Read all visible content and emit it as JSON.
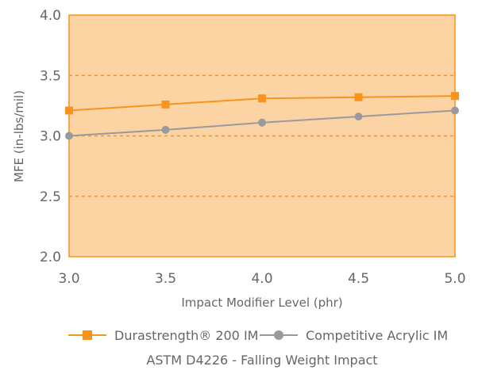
{
  "colors": {
    "plot_background": "#fcd3a2",
    "plot_border": "#f7941d",
    "gridline": "#f7941d",
    "series_orange": "#f7941d",
    "series_gray": "#9a9a9e"
  },
  "chart_data": {
    "type": "line",
    "title": "",
    "subtitle": "ASTM D4226 - Falling Weight Impact",
    "xlabel": "Impact Modifier Level (phr)",
    "ylabel": "MFE (in-lbs/mil)",
    "xlim": [
      3.0,
      5.0
    ],
    "ylim": [
      2.0,
      4.0
    ],
    "x": [
      3.0,
      3.5,
      4.0,
      4.5,
      5.0
    ],
    "x_tick_labels": [
      "3.0",
      "3.5",
      "4.0",
      "4.5",
      "5.0"
    ],
    "y_ticks": [
      2.0,
      2.5,
      3.0,
      3.5,
      4.0
    ],
    "y_tick_labels": [
      "2.0",
      "2.5",
      "3.0",
      "3.5",
      "4.0"
    ],
    "grid": "horizontal dashed",
    "legend_position": "bottom",
    "series": [
      {
        "name": "Durastrength® 200 IM",
        "marker": "square",
        "color": "#f7941d",
        "values": [
          3.21,
          3.26,
          3.31,
          3.32,
          3.33
        ]
      },
      {
        "name": "Competitive Acrylic IM",
        "marker": "circle",
        "color": "#9a9a9e",
        "values": [
          3.0,
          3.05,
          3.11,
          3.16,
          3.21
        ]
      }
    ]
  }
}
